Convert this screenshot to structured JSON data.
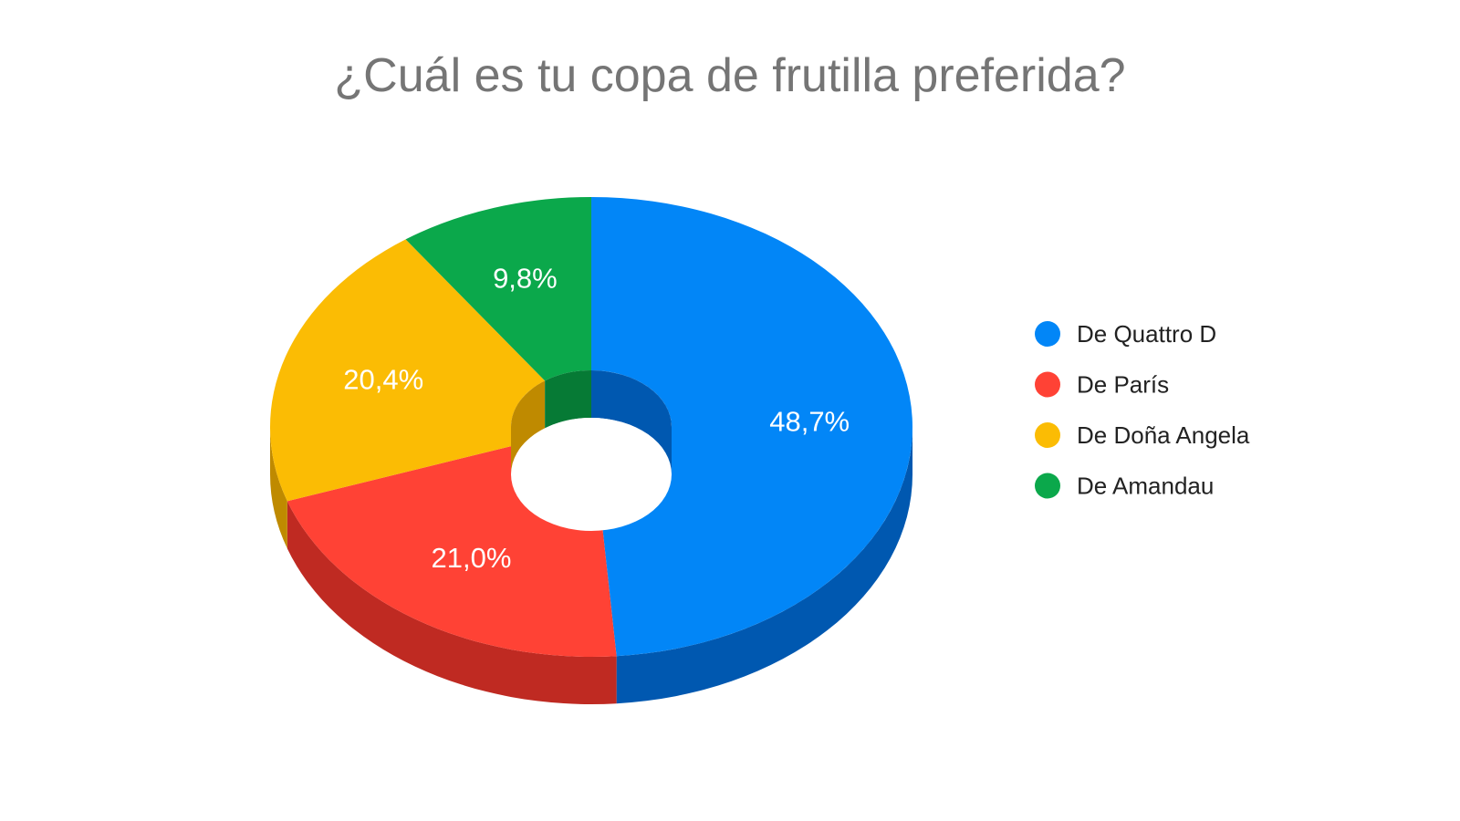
{
  "chart_data": {
    "type": "pie",
    "style": "3d-donut",
    "title": "¿Cuál es tu copa de frutilla preferida?",
    "legend_position": "right",
    "slices": [
      {
        "name": "De Quattro D",
        "value": 48.7,
        "label": "48,7%",
        "color": "#0286F7",
        "side_color": "#0058B0"
      },
      {
        "name": "De París",
        "value": 21.0,
        "label": "21,0%",
        "color": "#FF4235",
        "side_color": "#BF2A22"
      },
      {
        "name": "De Doña Angela",
        "value": 20.4,
        "label": "20,4%",
        "color": "#FBBC04",
        "side_color": "#BF8A00"
      },
      {
        "name": "De Amandau",
        "value": 9.8,
        "label": "9,8%",
        "color": "#0BA84B",
        "side_color": "#067A35"
      }
    ]
  }
}
